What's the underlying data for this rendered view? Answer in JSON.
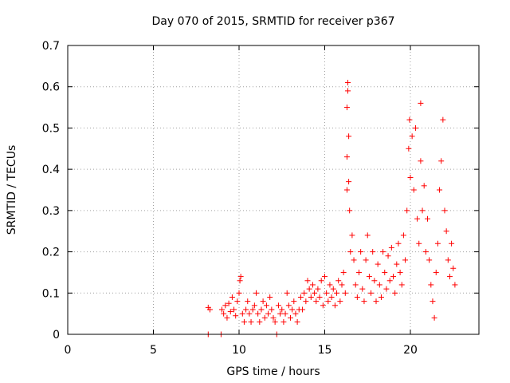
{
  "chart_data": {
    "type": "scatter",
    "title": "Day 070 of 2015, SRMTID for receiver p367",
    "xlabel": "GPS time / hours",
    "ylabel": "SRMTID / TECUs",
    "xlim": [
      0,
      24
    ],
    "ylim": [
      0,
      0.7
    ],
    "xticks": [
      0,
      5,
      10,
      15,
      20
    ],
    "yticks": [
      0,
      0.1,
      0.2,
      0.3,
      0.4,
      0.5,
      0.6,
      0.7
    ],
    "grid": true,
    "marker": "+",
    "color": "#ff0000",
    "series": [
      {
        "name": "SRMTID",
        "points": [
          [
            8.2,
            0
          ],
          [
            8.2,
            0.065
          ],
          [
            8.3,
            0.06
          ],
          [
            8.95,
            0
          ],
          [
            9.0,
            0.06
          ],
          [
            9.1,
            0.05
          ],
          [
            9.2,
            0.07
          ],
          [
            9.3,
            0.04
          ],
          [
            9.4,
            0.075
          ],
          [
            9.5,
            0.055
          ],
          [
            9.6,
            0.09
          ],
          [
            9.7,
            0.06
          ],
          [
            9.8,
            0.045
          ],
          [
            9.9,
            0.08
          ],
          [
            10.0,
            0.1
          ],
          [
            10.05,
            0.13
          ],
          [
            10.1,
            0.14
          ],
          [
            10.2,
            0.05
          ],
          [
            10.3,
            0.03
          ],
          [
            10.4,
            0.06
          ],
          [
            10.5,
            0.08
          ],
          [
            10.6,
            0.05
          ],
          [
            10.7,
            0.03
          ],
          [
            10.8,
            0.06
          ],
          [
            10.9,
            0.07
          ],
          [
            11.0,
            0.1
          ],
          [
            11.1,
            0.05
          ],
          [
            11.2,
            0.03
          ],
          [
            11.3,
            0.06
          ],
          [
            11.4,
            0.08
          ],
          [
            11.5,
            0.04
          ],
          [
            11.6,
            0.07
          ],
          [
            11.7,
            0.05
          ],
          [
            11.8,
            0.09
          ],
          [
            11.9,
            0.06
          ],
          [
            12.0,
            0.04
          ],
          [
            12.1,
            0.03
          ],
          [
            12.2,
            0
          ],
          [
            12.3,
            0.07
          ],
          [
            12.4,
            0.05
          ],
          [
            12.5,
            0.06
          ],
          [
            12.6,
            0.03
          ],
          [
            12.7,
            0.05
          ],
          [
            12.8,
            0.1
          ],
          [
            12.9,
            0.07
          ],
          [
            13.0,
            0.04
          ],
          [
            13.1,
            0.06
          ],
          [
            13.2,
            0.08
          ],
          [
            13.3,
            0.05
          ],
          [
            13.4,
            0.03
          ],
          [
            13.5,
            0.06
          ],
          [
            13.6,
            0.09
          ],
          [
            13.7,
            0.06
          ],
          [
            13.8,
            0.1
          ],
          [
            13.9,
            0.08
          ],
          [
            14.0,
            0.13
          ],
          [
            14.1,
            0.11
          ],
          [
            14.2,
            0.09
          ],
          [
            14.3,
            0.12
          ],
          [
            14.4,
            0.1
          ],
          [
            14.5,
            0.08
          ],
          [
            14.6,
            0.11
          ],
          [
            14.7,
            0.09
          ],
          [
            14.8,
            0.13
          ],
          [
            14.9,
            0.07
          ],
          [
            15.0,
            0.14
          ],
          [
            15.1,
            0.1
          ],
          [
            15.2,
            0.08
          ],
          [
            15.3,
            0.12
          ],
          [
            15.4,
            0.09
          ],
          [
            15.5,
            0.11
          ],
          [
            15.6,
            0.07
          ],
          [
            15.7,
            0.1
          ],
          [
            15.8,
            0.13
          ],
          [
            15.9,
            0.08
          ],
          [
            16.0,
            0.12
          ],
          [
            16.1,
            0.15
          ],
          [
            16.2,
            0.1
          ],
          [
            16.3,
            0.35
          ],
          [
            16.3,
            0.43
          ],
          [
            16.3,
            0.55
          ],
          [
            16.35,
            0.59
          ],
          [
            16.35,
            0.61
          ],
          [
            16.4,
            0.37
          ],
          [
            16.4,
            0.48
          ],
          [
            16.45,
            0.3
          ],
          [
            16.5,
            0.2
          ],
          [
            16.6,
            0.24
          ],
          [
            16.7,
            0.18
          ],
          [
            16.8,
            0.12
          ],
          [
            16.9,
            0.09
          ],
          [
            17.0,
            0.15
          ],
          [
            17.1,
            0.2
          ],
          [
            17.2,
            0.11
          ],
          [
            17.3,
            0.08
          ],
          [
            17.4,
            0.18
          ],
          [
            17.5,
            0.24
          ],
          [
            17.6,
            0.14
          ],
          [
            17.7,
            0.1
          ],
          [
            17.8,
            0.2
          ],
          [
            17.9,
            0.13
          ],
          [
            18.0,
            0.08
          ],
          [
            18.1,
            0.17
          ],
          [
            18.2,
            0.12
          ],
          [
            18.3,
            0.09
          ],
          [
            18.4,
            0.2
          ],
          [
            18.5,
            0.15
          ],
          [
            18.6,
            0.11
          ],
          [
            18.7,
            0.19
          ],
          [
            18.8,
            0.13
          ],
          [
            18.9,
            0.21
          ],
          [
            19.0,
            0.14
          ],
          [
            19.1,
            0.1
          ],
          [
            19.2,
            0.17
          ],
          [
            19.3,
            0.22
          ],
          [
            19.4,
            0.15
          ],
          [
            19.5,
            0.12
          ],
          [
            19.6,
            0.24
          ],
          [
            19.7,
            0.18
          ],
          [
            19.8,
            0.3
          ],
          [
            19.9,
            0.45
          ],
          [
            19.95,
            0.52
          ],
          [
            20.0,
            0.38
          ],
          [
            20.1,
            0.48
          ],
          [
            20.2,
            0.35
          ],
          [
            20.3,
            0.5
          ],
          [
            20.4,
            0.28
          ],
          [
            20.5,
            0.22
          ],
          [
            20.6,
            0.42
          ],
          [
            20.6,
            0.56
          ],
          [
            20.7,
            0.3
          ],
          [
            20.8,
            0.36
          ],
          [
            20.9,
            0.2
          ],
          [
            21.0,
            0.28
          ],
          [
            21.1,
            0.18
          ],
          [
            21.2,
            0.12
          ],
          [
            21.3,
            0.08
          ],
          [
            21.4,
            0.04
          ],
          [
            21.5,
            0.15
          ],
          [
            21.6,
            0.22
          ],
          [
            21.7,
            0.35
          ],
          [
            21.8,
            0.42
          ],
          [
            21.9,
            0.52
          ],
          [
            22.0,
            0.3
          ],
          [
            22.1,
            0.25
          ],
          [
            22.2,
            0.18
          ],
          [
            22.3,
            0.14
          ],
          [
            22.4,
            0.22
          ],
          [
            22.5,
            0.16
          ],
          [
            22.6,
            0.12
          ]
        ]
      }
    ]
  }
}
